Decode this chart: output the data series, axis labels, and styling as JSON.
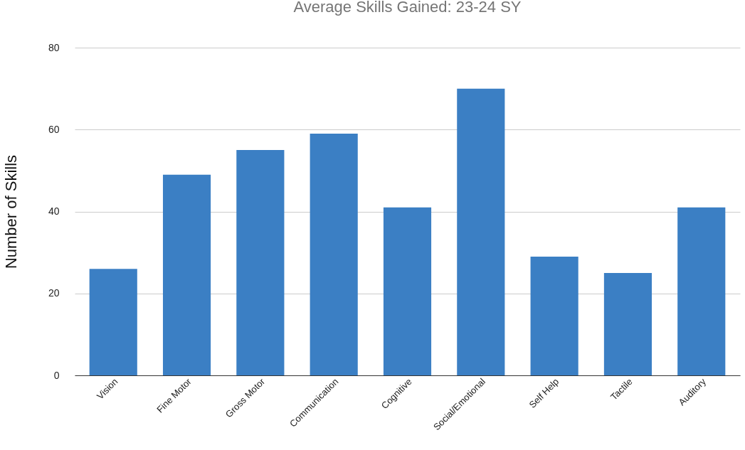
{
  "chart_data": {
    "type": "bar",
    "title": "Average Skills Gained: 23-24 SY",
    "ylabel": "Number of Skills",
    "categories": [
      "Vision",
      "Fine Motor",
      "Gross Motor",
      "Communication",
      "Cognitive",
      "Social/Emotional",
      "Self Help",
      "Tactile",
      "Auditory"
    ],
    "values": [
      26,
      49,
      55,
      59,
      41,
      70,
      29,
      25,
      41
    ],
    "color": "#3b7fc4",
    "ylim": [
      0,
      80
    ],
    "yticks": [
      0,
      20,
      40,
      60,
      80
    ],
    "grid": "y"
  }
}
